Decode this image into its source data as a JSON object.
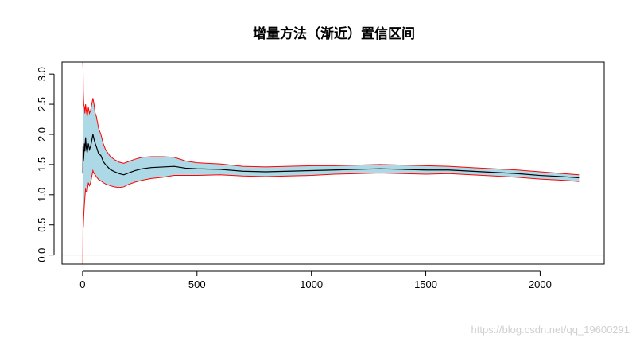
{
  "chart_data": {
    "type": "area",
    "title": "增量方法（渐近）置信区间",
    "xlabel": "",
    "ylabel": "",
    "xlim": [
      -90,
      2280
    ],
    "ylim": [
      -0.15,
      3.2
    ],
    "x_ticks": [
      0,
      500,
      1000,
      1500,
      2000
    ],
    "x_tick_labels": [
      "0",
      "500",
      "1000",
      "1500",
      "2000"
    ],
    "y_ticks": [
      0.0,
      0.5,
      1.0,
      1.5,
      2.0,
      2.5,
      3.0
    ],
    "y_tick_labels": [
      "0.0",
      "0.5",
      "1.0",
      "1.5",
      "2.0",
      "2.5",
      "3.0"
    ],
    "reference_line": {
      "y": 0,
      "color": "#bebebe"
    },
    "grid": false,
    "colors": {
      "band_fill": "#add8e6",
      "bounds": "#ff0000",
      "estimate": "#000000"
    },
    "series": [
      {
        "role": "estimate",
        "x": [
          1,
          2,
          3,
          5,
          8,
          10,
          13,
          16,
          20,
          25,
          30,
          35,
          40,
          45,
          50,
          55,
          60,
          70,
          80,
          90,
          100,
          120,
          140,
          160,
          180,
          200,
          230,
          260,
          300,
          350,
          400,
          450,
          500,
          600,
          700,
          800,
          900,
          1000,
          1100,
          1200,
          1300,
          1400,
          1500,
          1600,
          1700,
          1800,
          1900,
          2000,
          2100,
          2170
        ],
        "values": [
          1.35,
          1.8,
          1.55,
          1.62,
          1.85,
          1.72,
          1.95,
          1.78,
          1.7,
          1.85,
          1.75,
          1.8,
          1.9,
          2.0,
          1.92,
          1.85,
          1.8,
          1.68,
          1.65,
          1.55,
          1.5,
          1.42,
          1.38,
          1.35,
          1.33,
          1.36,
          1.4,
          1.43,
          1.45,
          1.46,
          1.47,
          1.44,
          1.43,
          1.42,
          1.39,
          1.38,
          1.39,
          1.4,
          1.41,
          1.42,
          1.43,
          1.42,
          1.41,
          1.41,
          1.39,
          1.37,
          1.35,
          1.32,
          1.3,
          1.28
        ]
      },
      {
        "role": "upper",
        "x": [
          1,
          2,
          3,
          5,
          8,
          10,
          13,
          16,
          20,
          25,
          30,
          35,
          40,
          45,
          50,
          55,
          60,
          70,
          80,
          90,
          100,
          120,
          140,
          160,
          180,
          200,
          230,
          260,
          300,
          350,
          400,
          450,
          500,
          600,
          700,
          800,
          900,
          1000,
          1100,
          1200,
          1300,
          1400,
          1500,
          1600,
          1700,
          1800,
          1900,
          2000,
          2100,
          2170
        ],
        "values": [
          3.2,
          3.1,
          2.7,
          2.5,
          2.45,
          2.35,
          2.5,
          2.4,
          2.3,
          2.45,
          2.35,
          2.4,
          2.5,
          2.6,
          2.5,
          2.35,
          2.3,
          2.1,
          2.0,
          1.85,
          1.75,
          1.64,
          1.58,
          1.54,
          1.52,
          1.55,
          1.59,
          1.62,
          1.63,
          1.63,
          1.62,
          1.56,
          1.53,
          1.51,
          1.47,
          1.46,
          1.47,
          1.48,
          1.48,
          1.49,
          1.5,
          1.49,
          1.48,
          1.47,
          1.45,
          1.43,
          1.41,
          1.38,
          1.35,
          1.33
        ]
      },
      {
        "role": "lower",
        "x": [
          1,
          2,
          3,
          5,
          8,
          10,
          13,
          16,
          20,
          25,
          30,
          35,
          40,
          45,
          50,
          55,
          60,
          70,
          80,
          90,
          100,
          120,
          140,
          160,
          180,
          200,
          230,
          260,
          300,
          350,
          400,
          450,
          500,
          600,
          700,
          800,
          900,
          1000,
          1100,
          1200,
          1300,
          1400,
          1500,
          1600,
          1700,
          1800,
          1900,
          2000,
          2100,
          2170
        ],
        "values": [
          -0.15,
          0.5,
          0.45,
          0.65,
          0.85,
          0.95,
          1.1,
          1.05,
          1.05,
          1.2,
          1.15,
          1.2,
          1.3,
          1.4,
          1.35,
          1.33,
          1.3,
          1.25,
          1.23,
          1.2,
          1.18,
          1.15,
          1.13,
          1.12,
          1.13,
          1.17,
          1.21,
          1.24,
          1.27,
          1.29,
          1.32,
          1.32,
          1.32,
          1.33,
          1.31,
          1.3,
          1.31,
          1.32,
          1.34,
          1.35,
          1.36,
          1.35,
          1.34,
          1.35,
          1.33,
          1.31,
          1.29,
          1.26,
          1.24,
          1.22
        ]
      }
    ]
  },
  "watermark": "https://blog.csdn.net/qq_19600291"
}
